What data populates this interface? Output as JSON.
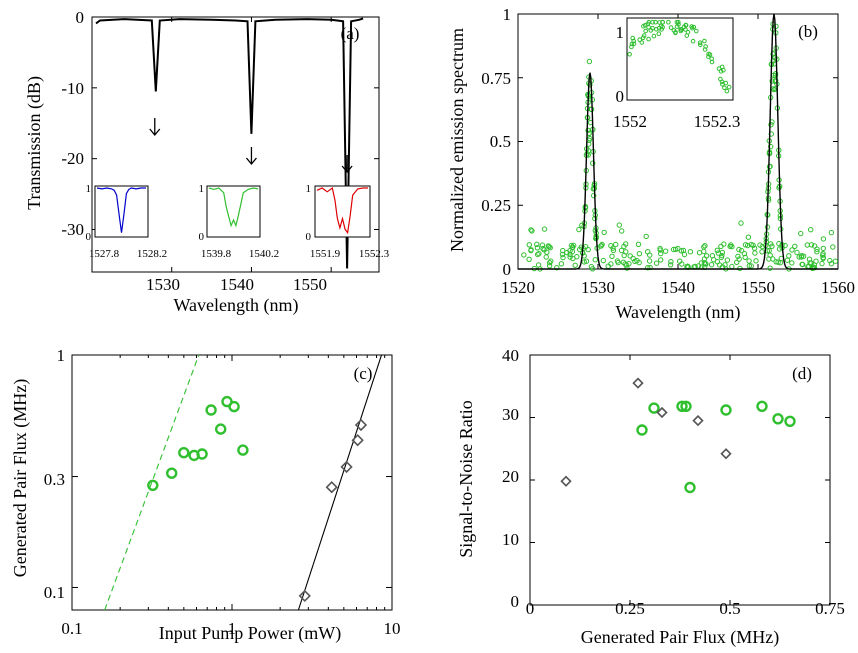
{
  "colors": {
    "green": "#2fbf2f",
    "gray": "#555555",
    "black": "#000000",
    "blue": "#0000cc",
    "red": "#dd0000"
  },
  "chart_data": [
    {
      "id": "a",
      "type": "line",
      "panel_label": "(a)",
      "xlabel": "Wavelength (nm)",
      "ylabel": "Transmission (dB)",
      "xlim": [
        1520,
        1556
      ],
      "ylim": [
        -36,
        0
      ],
      "xticks": [
        "1530",
        "1540",
        "1550"
      ],
      "yticks": [
        "0",
        "-10",
        "-20",
        "-30"
      ],
      "series": [
        {
          "x": [
            1520.5,
            1521,
            1524,
            1527.5,
            1528.0,
            1528.5,
            1531,
            1535,
            1538,
            1539.5,
            1540.0,
            1540.5,
            1543,
            1547,
            1550,
            1551.5,
            1552.0,
            1552.5,
            1553.5,
            1554
          ],
          "y": [
            -0.9,
            -0.5,
            -0.3,
            -0.5,
            -10.5,
            -0.5,
            -0.3,
            -0.4,
            -0.5,
            -0.6,
            -16.5,
            -0.6,
            -0.4,
            -0.3,
            -0.4,
            -0.6,
            -35.5,
            -0.6,
            -0.4,
            -0.2
          ]
        }
      ],
      "arrows": [
        {
          "x": 1528.0
        },
        {
          "x": 1540.0
        },
        {
          "x": 1552.0
        }
      ],
      "insets": [
        {
          "color": "blue",
          "xticks": [
            "1527.8",
            "1528.2"
          ],
          "yticks": [
            "1",
            "0"
          ],
          "x": [
            0,
            0.1,
            0.2,
            0.3,
            0.35,
            0.4,
            0.45,
            0.5,
            0.55,
            0.6,
            0.65,
            0.7,
            0.8,
            0.9,
            1.0
          ],
          "y": [
            1.0,
            0.98,
            1.0,
            0.98,
            0.95,
            0.85,
            0.45,
            0.05,
            0.45,
            0.88,
            0.97,
            1.0,
            0.98,
            1.0,
            1.0
          ]
        },
        {
          "color": "green",
          "xticks": [
            "1539.8",
            "1540.2"
          ],
          "yticks": [
            "1",
            "0"
          ],
          "x": [
            0,
            0.1,
            0.2,
            0.3,
            0.35,
            0.4,
            0.45,
            0.5,
            0.55,
            0.6,
            0.65,
            0.7,
            0.8,
            0.9,
            1.0
          ],
          "y": [
            1.0,
            0.97,
            1.0,
            0.9,
            0.6,
            0.4,
            0.2,
            0.32,
            0.2,
            0.42,
            0.65,
            0.9,
            0.97,
            1.0,
            0.98
          ]
        },
        {
          "color": "red",
          "xticks": [
            "1551.9",
            "1552.3"
          ],
          "yticks": [
            "1",
            "0"
          ],
          "x": [
            0,
            0.1,
            0.2,
            0.3,
            0.35,
            0.4,
            0.45,
            0.5,
            0.55,
            0.6,
            0.65,
            0.7,
            0.8,
            0.9,
            1.0
          ],
          "y": [
            0.95,
            1.0,
            0.92,
            1.0,
            0.75,
            0.35,
            0.15,
            0.35,
            0.12,
            0.05,
            0.4,
            0.85,
            0.98,
            1.0,
            1.0
          ]
        }
      ]
    },
    {
      "id": "b",
      "type": "scatter",
      "panel_label": "(b)",
      "xlabel": "Wavelength (nm)",
      "ylabel": "Normalized emission spectrum",
      "xlim": [
        1520,
        1560
      ],
      "ylim": [
        0,
        1
      ],
      "xticks": [
        "1520",
        "1530",
        "1540",
        "1550",
        "1560"
      ],
      "yticks": [
        "0",
        "0.25",
        "0.5",
        "0.75",
        "1"
      ],
      "fit_peaks": [
        {
          "center": 1529.0,
          "height": 0.77,
          "width": 0.85
        },
        {
          "center": 1552.0,
          "height": 1.0,
          "width": 0.95
        }
      ],
      "inset": {
        "xticks": [
          "1552",
          "1552.3"
        ],
        "yticks": [
          "1",
          "0"
        ]
      }
    },
    {
      "id": "c",
      "type": "scatter",
      "panel_label": "(c)",
      "xlabel": "Input Pump Power (mW)",
      "ylabel": "Generated Pair Flux (MHz)",
      "xscale": "log",
      "yscale": "log",
      "xlim": [
        0.1,
        10
      ],
      "ylim": [
        0.08,
        1
      ],
      "xticks": [
        "0.1",
        "1",
        "10"
      ],
      "yticks": [
        "0.1",
        "0.3",
        "1"
      ],
      "series": [
        {
          "marker": "circle",
          "color": "green",
          "x": [
            0.32,
            0.42,
            0.5,
            0.58,
            0.65,
            0.74,
            0.85,
            0.93,
            1.03,
            1.17
          ],
          "y": [
            0.275,
            0.31,
            0.38,
            0.37,
            0.375,
            0.58,
            0.48,
            0.63,
            0.6,
            0.39
          ]
        },
        {
          "marker": "diamond",
          "color": "gray",
          "x": [
            2.85,
            4.2,
            5.2,
            6.1,
            6.4
          ],
          "y": [
            0.092,
            0.27,
            0.33,
            0.43,
            0.5
          ]
        }
      ],
      "fit_lines": [
        {
          "style": "dashed",
          "color": "green",
          "x": [
            0.16,
            0.62
          ],
          "y": [
            0.08,
            1.0
          ]
        },
        {
          "style": "solid",
          "color": "black",
          "x": [
            2.6,
            8.6
          ],
          "y": [
            0.08,
            1.0
          ]
        }
      ]
    },
    {
      "id": "d",
      "type": "scatter",
      "panel_label": "(d)",
      "xlabel": "Generated Pair Flux (MHz)",
      "ylabel": "Signal-to-Noise Ratio",
      "xlim": [
        0,
        0.75
      ],
      "ylim": [
        0,
        40
      ],
      "xticks": [
        "0",
        "0.25",
        "0.5",
        "0.75"
      ],
      "yticks": [
        "0",
        "10",
        "20",
        "30",
        "40"
      ],
      "series": [
        {
          "marker": "circle",
          "color": "green",
          "x": [
            0.28,
            0.31,
            0.38,
            0.39,
            0.4,
            0.49,
            0.58,
            0.62,
            0.65
          ],
          "y": [
            28,
            31.5,
            31.8,
            31.8,
            18.8,
            31.2,
            31.8,
            29.8,
            29.4
          ]
        },
        {
          "marker": "diamond",
          "color": "gray",
          "x": [
            0.09,
            0.27,
            0.33,
            0.42,
            0.49
          ],
          "y": [
            19.8,
            35.5,
            30.8,
            29.5,
            24.2
          ]
        }
      ]
    }
  ]
}
